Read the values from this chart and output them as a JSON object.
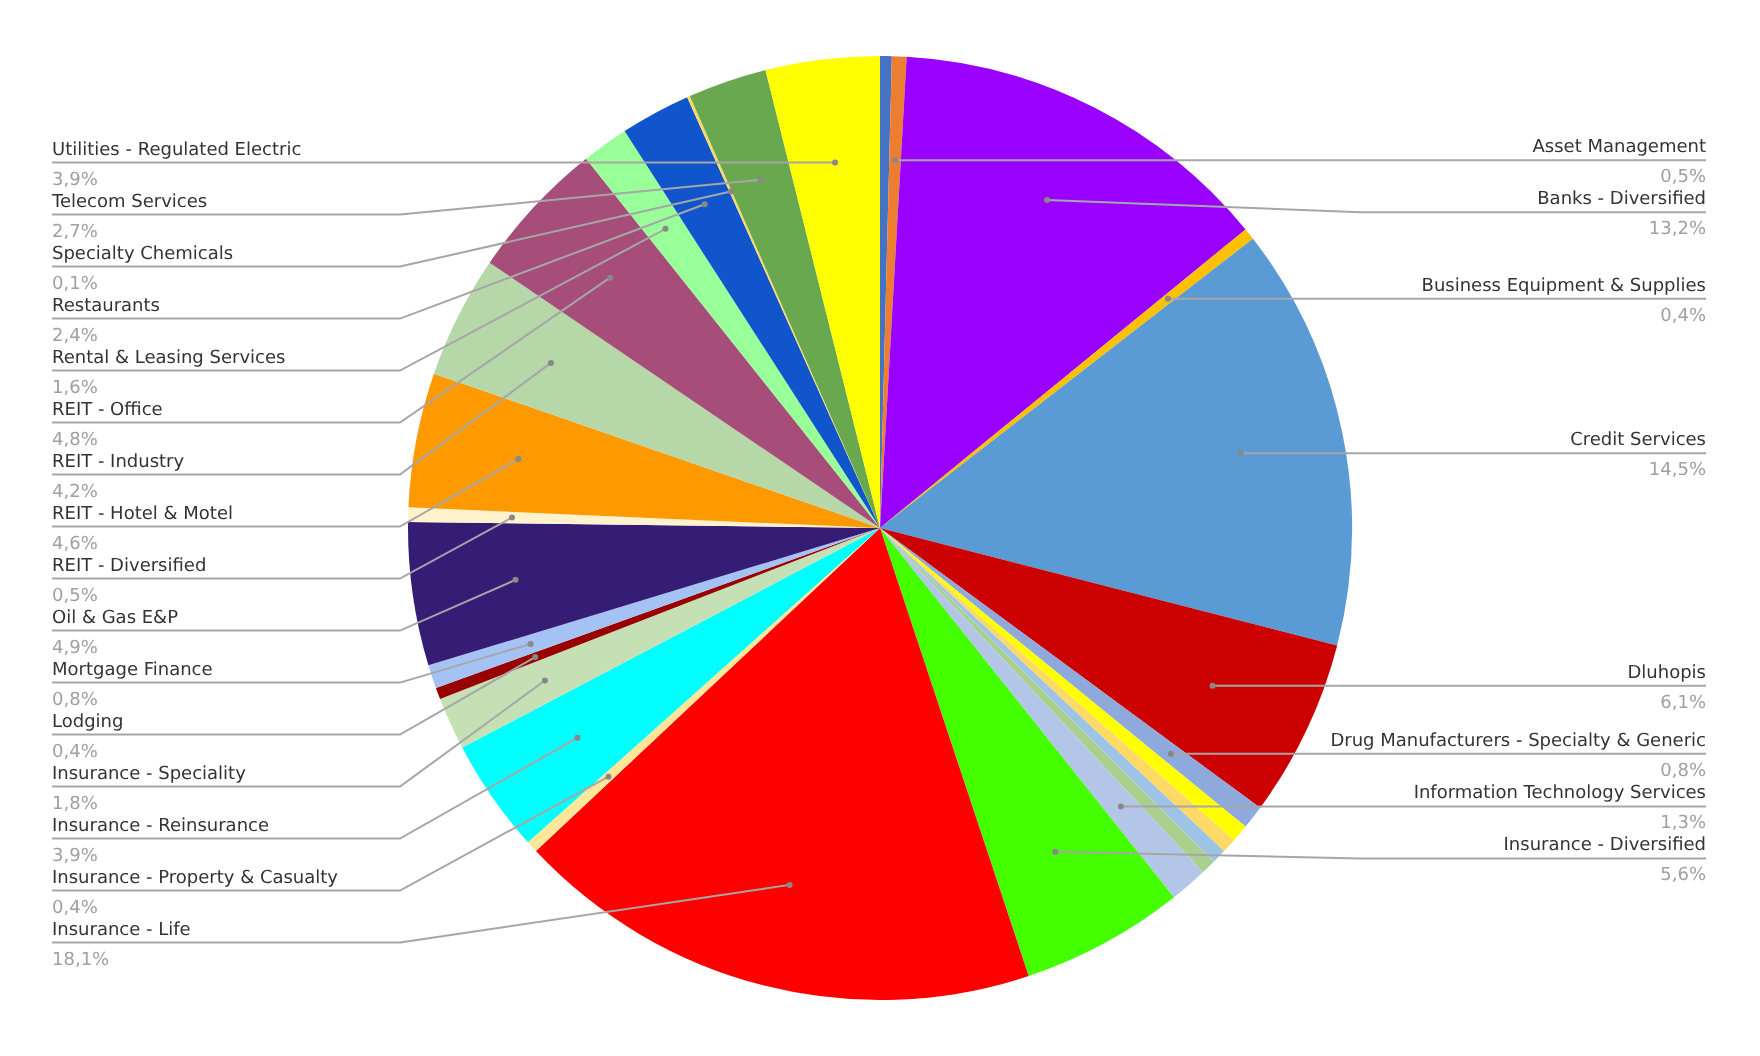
{
  "chart_data": {
    "type": "pie",
    "categories": [
      null,
      "Asset Management",
      "Banks - Diversified",
      "Business Equipment & Supplies",
      "Credit Services",
      "Dluhopis",
      "Drug Manufacturers - Specialty & Generic",
      null,
      null,
      null,
      null,
      "Information Technology Services",
      "Insurance - Diversified",
      "Insurance - Life",
      "Insurance - Property & Casualty",
      "Insurance - Reinsurance",
      "Insurance - Speciality",
      "Lodging",
      "Mortgage Finance",
      "Oil & Gas E&P",
      "REIT - Diversified",
      "REIT - Hotel & Motel",
      "REIT - Industry",
      "REIT - Office",
      "Rental & Leasing Services",
      "Restaurants",
      "Specialty Chemicals",
      "Telecom Services",
      "Utilities - Regulated Electric"
    ],
    "values": [
      0.4,
      0.5,
      13.2,
      0.4,
      14.5,
      6.1,
      0.8,
      0.6,
      0.5,
      0.5,
      0.5,
      1.3,
      5.6,
      18.1,
      0.4,
      3.9,
      1.8,
      0.4,
      0.8,
      4.9,
      0.5,
      4.6,
      4.2,
      4.8,
      1.6,
      2.4,
      0.1,
      2.7,
      3.9
    ],
    "colors": [
      "#4472c4",
      "#ed7d31",
      "#9900ff",
      "#ffc000",
      "#5b9bd5",
      "#cc0000",
      "#8ea9db",
      "#ffff00",
      "#ffd966",
      "#9dc3e6",
      "#a9d08e",
      "#b4c6e7",
      "#44ff00",
      "#ff0000",
      "#ffe699",
      "#00ffff",
      "#c5e0b4",
      "#990000",
      "#a4c2f4",
      "#351c75",
      "#fff2cc",
      "#ff9900",
      "#b6d7a8",
      "#a64d79",
      "#99ff99",
      "#1155cc",
      "#ffd966",
      "#6aa84f",
      "#ffff00"
    ],
    "value_labels": [
      null,
      "0,5%",
      "13,2%",
      "0,4%",
      "14,5%",
      "6,1%",
      "0,8%",
      null,
      null,
      null,
      null,
      "1,3%",
      "5,6%",
      "18,1%",
      "0,4%",
      "3,9%",
      "1,8%",
      "0,4%",
      "0,8%",
      "4,9%",
      "0,5%",
      "4,6%",
      "4,2%",
      "4,8%",
      "1,6%",
      "2,4%",
      "0,1%",
      "2,7%",
      "3,9%"
    ],
    "legend": false
  }
}
